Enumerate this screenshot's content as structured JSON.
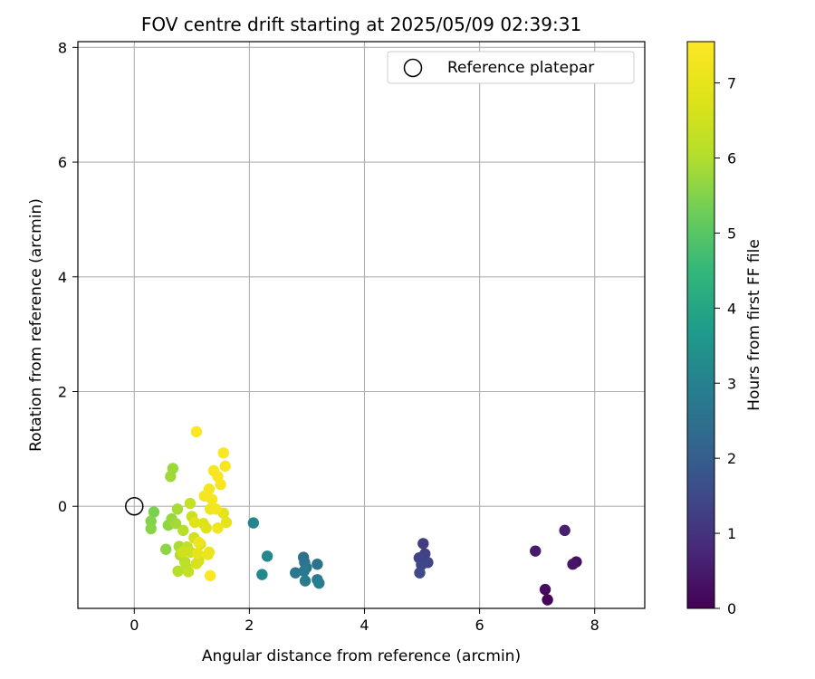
{
  "chart_data": {
    "type": "scatter",
    "title": "FOV centre drift starting at 2025/05/09 02:39:31",
    "xlabel": "Angular distance from reference (arcmin)",
    "ylabel": "Rotation from reference (arcmin)",
    "xlim": [
      -0.98,
      8.87
    ],
    "ylim": [
      -1.78,
      8.1
    ],
    "xticks": [
      0,
      2,
      4,
      6,
      8
    ],
    "yticks": [
      0,
      2,
      4,
      6,
      8
    ],
    "grid": true,
    "legend": {
      "placement": "top-right",
      "entries": [
        "Reference platepar"
      ]
    },
    "reference_point": {
      "label": "Reference platepar",
      "x": 0,
      "y": 0
    },
    "colorbar": {
      "label": "Hours from first FF file",
      "colormap": "viridis",
      "range": [
        0,
        7.55
      ],
      "ticks": [
        0,
        1,
        2,
        3,
        4,
        5,
        6,
        7
      ]
    },
    "series": [
      {
        "points": [
          {
            "x": 7.18,
            "y": -1.63,
            "c": 0.1
          },
          {
            "x": 7.14,
            "y": -1.45,
            "c": 0.2
          },
          {
            "x": 7.68,
            "y": -0.97,
            "c": 0.3
          },
          {
            "x": 7.62,
            "y": -1.01,
            "c": 0.4
          },
          {
            "x": 6.97,
            "y": -0.78,
            "c": 0.5
          },
          {
            "x": 7.48,
            "y": -0.42,
            "c": 0.6
          },
          {
            "x": 5.02,
            "y": -0.65,
            "c": 1.2
          },
          {
            "x": 5.05,
            "y": -0.83,
            "c": 1.3
          },
          {
            "x": 4.95,
            "y": -0.9,
            "c": 1.35
          },
          {
            "x": 5.1,
            "y": -0.98,
            "c": 1.4
          },
          {
            "x": 4.99,
            "y": -1.02,
            "c": 1.45
          },
          {
            "x": 4.96,
            "y": -1.16,
            "c": 1.5
          },
          {
            "x": 2.94,
            "y": -0.89,
            "c": 2.5
          },
          {
            "x": 2.96,
            "y": -0.98,
            "c": 2.55
          },
          {
            "x": 3.18,
            "y": -1.01,
            "c": 2.6
          },
          {
            "x": 2.99,
            "y": -1.07,
            "c": 2.65
          },
          {
            "x": 2.8,
            "y": -1.16,
            "c": 2.7
          },
          {
            "x": 2.95,
            "y": -1.13,
            "c": 2.75
          },
          {
            "x": 3.18,
            "y": -1.28,
            "c": 2.8
          },
          {
            "x": 2.97,
            "y": -1.3,
            "c": 2.85
          },
          {
            "x": 3.21,
            "y": -1.34,
            "c": 2.9
          },
          {
            "x": 2.07,
            "y": -0.29,
            "c": 3.1
          },
          {
            "x": 2.31,
            "y": -0.87,
            "c": 3.15
          },
          {
            "x": 2.22,
            "y": -1.19,
            "c": 3.2
          },
          {
            "x": 0.34,
            "y": -0.1,
            "c": 5.4
          },
          {
            "x": 0.29,
            "y": -0.26,
            "c": 5.5
          },
          {
            "x": 0.29,
            "y": -0.39,
            "c": 5.55
          },
          {
            "x": 0.55,
            "y": -0.75,
            "c": 5.6
          },
          {
            "x": 0.59,
            "y": -0.33,
            "c": 5.65
          },
          {
            "x": 0.65,
            "y": -0.22,
            "c": 5.7
          },
          {
            "x": 0.67,
            "y": 0.66,
            "c": 5.75
          },
          {
            "x": 0.63,
            "y": 0.52,
            "c": 5.8
          },
          {
            "x": 0.72,
            "y": -0.3,
            "c": 5.85
          },
          {
            "x": 0.75,
            "y": -0.05,
            "c": 5.9
          },
          {
            "x": 0.78,
            "y": -0.7,
            "c": 5.95
          },
          {
            "x": 0.8,
            "y": -0.85,
            "c": 6.0
          },
          {
            "x": 0.76,
            "y": -1.13,
            "c": 6.05
          },
          {
            "x": 0.85,
            "y": -0.42,
            "c": 6.1
          },
          {
            "x": 0.88,
            "y": -0.97,
            "c": 6.15
          },
          {
            "x": 0.9,
            "y": -1.06,
            "c": 6.2
          },
          {
            "x": 0.92,
            "y": -0.71,
            "c": 6.25
          },
          {
            "x": 0.94,
            "y": -1.14,
            "c": 6.3
          },
          {
            "x": 0.97,
            "y": 0.05,
            "c": 6.35
          },
          {
            "x": 1.0,
            "y": -0.18,
            "c": 6.4
          },
          {
            "x": 0.98,
            "y": -0.8,
            "c": 6.45
          },
          {
            "x": 1.04,
            "y": -0.55,
            "c": 6.5
          },
          {
            "x": 0.84,
            "y": -0.8,
            "c": 6.55
          },
          {
            "x": 1.12,
            "y": -0.95,
            "c": 6.6
          },
          {
            "x": 1.08,
            "y": -1.0,
            "c": 6.65
          },
          {
            "x": 1.15,
            "y": -0.66,
            "c": 6.7
          },
          {
            "x": 1.2,
            "y": -0.3,
            "c": 6.75
          },
          {
            "x": 1.05,
            "y": -0.28,
            "c": 6.8
          },
          {
            "x": 1.25,
            "y": -0.38,
            "c": 6.85
          },
          {
            "x": 1.55,
            "y": -0.12,
            "c": 6.9
          },
          {
            "x": 1.6,
            "y": -0.28,
            "c": 6.95
          },
          {
            "x": 1.1,
            "y": -0.82,
            "c": 7.0
          },
          {
            "x": 1.28,
            "y": -0.84,
            "c": 7.05
          },
          {
            "x": 1.3,
            "y": -0.8,
            "c": 7.1
          },
          {
            "x": 1.12,
            "y": -0.63,
            "c": 7.15
          },
          {
            "x": 1.32,
            "y": -0.05,
            "c": 7.2
          },
          {
            "x": 1.45,
            "y": -0.38,
            "c": 7.25
          },
          {
            "x": 1.42,
            "y": -0.05,
            "c": 7.3
          },
          {
            "x": 1.35,
            "y": 0.12,
            "c": 7.32
          },
          {
            "x": 1.22,
            "y": 0.18,
            "c": 7.34
          },
          {
            "x": 1.3,
            "y": 0.3,
            "c": 7.36
          },
          {
            "x": 1.5,
            "y": 0.38,
            "c": 7.38
          },
          {
            "x": 1.38,
            "y": 0.62,
            "c": 7.4
          },
          {
            "x": 1.45,
            "y": 0.52,
            "c": 7.42
          },
          {
            "x": 1.58,
            "y": 0.7,
            "c": 7.44
          },
          {
            "x": 1.55,
            "y": 0.93,
            "c": 7.46
          },
          {
            "x": 1.08,
            "y": 1.3,
            "c": 7.48
          },
          {
            "x": 1.32,
            "y": -1.21,
            "c": 7.5
          }
        ]
      }
    ]
  }
}
